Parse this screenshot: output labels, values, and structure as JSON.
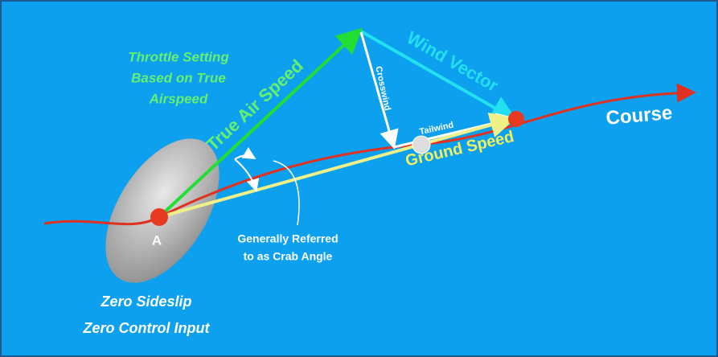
{
  "throttle_note": [
    "Throttle Setting",
    "Based on True",
    "Airspeed"
  ],
  "vectors": {
    "true_air_speed": "True Air Speed",
    "wind_vector": "Wind Vector",
    "crosswind": "Crosswind",
    "tailwind": "Tailwind",
    "ground_speed": "Ground Speed"
  },
  "course": "Course",
  "point": "A",
  "crab_note": [
    "Generally Referred",
    "to as Crab Angle"
  ],
  "footer": [
    "Zero Sideslip",
    "Zero Control Input"
  ]
}
